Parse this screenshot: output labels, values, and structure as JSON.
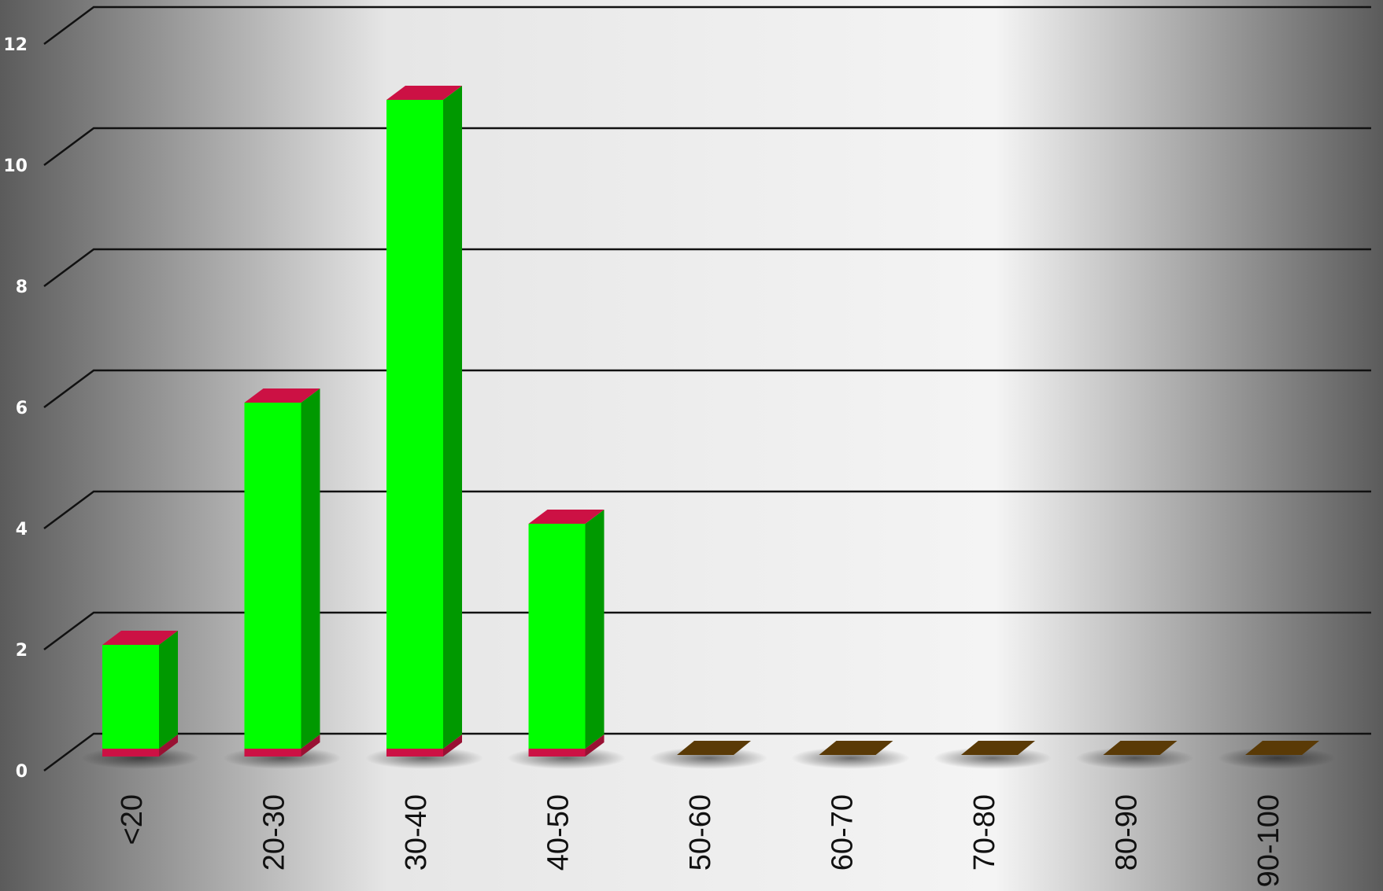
{
  "chart_data": {
    "type": "bar",
    "categories": [
      "<20",
      "20-30",
      "30-40",
      "40-50",
      "50-60",
      "60-70",
      "70-80",
      "80-90",
      "90-100"
    ],
    "values": [
      2,
      6,
      11,
      4,
      0,
      0,
      0,
      0,
      0
    ],
    "ylim": [
      0,
      12
    ],
    "yticks": [
      "0",
      "2",
      "4",
      "6",
      "8",
      "10",
      "12"
    ],
    "grid": true,
    "legend": "none",
    "three_d": true,
    "colors": {
      "bar_front": "#00ff00",
      "bar_side": "#009900",
      "bar_cap": "#cc1144",
      "zero_marker": "#5a3a06",
      "gridline": "#111111",
      "tick_text": "#ffffff",
      "category_text": "#111111"
    }
  }
}
